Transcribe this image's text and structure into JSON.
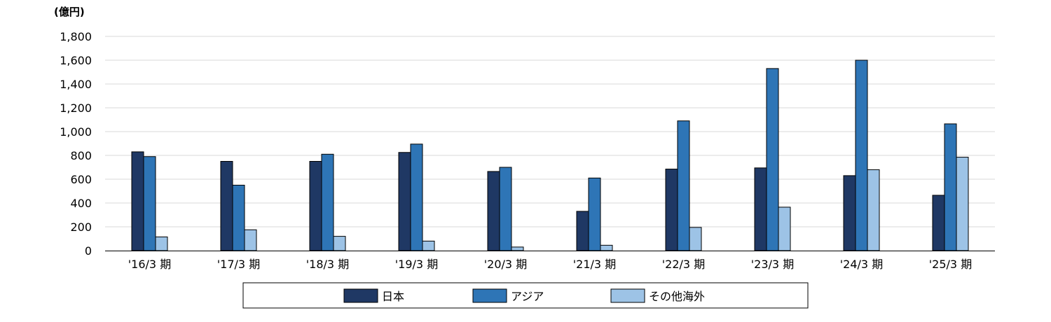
{
  "chart_data": {
    "type": "bar",
    "unit_label": "(億円)",
    "categories": [
      "'16/3 期",
      "'17/3 期",
      "'18/3 期",
      "'19/3 期",
      "'20/3 期",
      "'21/3 期",
      "'22/3 期",
      "'23/3 期",
      "'24/3 期",
      "'25/3 期"
    ],
    "series": [
      {
        "name": "日本",
        "color": "#1f3864",
        "values": [
          830,
          750,
          750,
          825,
          665,
          330,
          685,
          695,
          630,
          465
        ]
      },
      {
        "name": "アジア",
        "color": "#2e75b6",
        "values": [
          790,
          550,
          810,
          895,
          700,
          610,
          1090,
          1530,
          1600,
          1065
        ]
      },
      {
        "name": "その他海外",
        "color": "#9dc3e6",
        "values": [
          115,
          175,
          120,
          80,
          30,
          45,
          195,
          365,
          680,
          785
        ]
      }
    ],
    "ylim": [
      0,
      1800
    ],
    "yticks": [
      0,
      200,
      400,
      600,
      800,
      1000,
      1200,
      1400,
      1600,
      1800
    ],
    "ytick_labels": [
      "0",
      "200",
      "400",
      "600",
      "800",
      "1,000",
      "1,200",
      "1,400",
      "1,600",
      "1,800"
    ],
    "grid": true,
    "legend_position": "bottom"
  }
}
